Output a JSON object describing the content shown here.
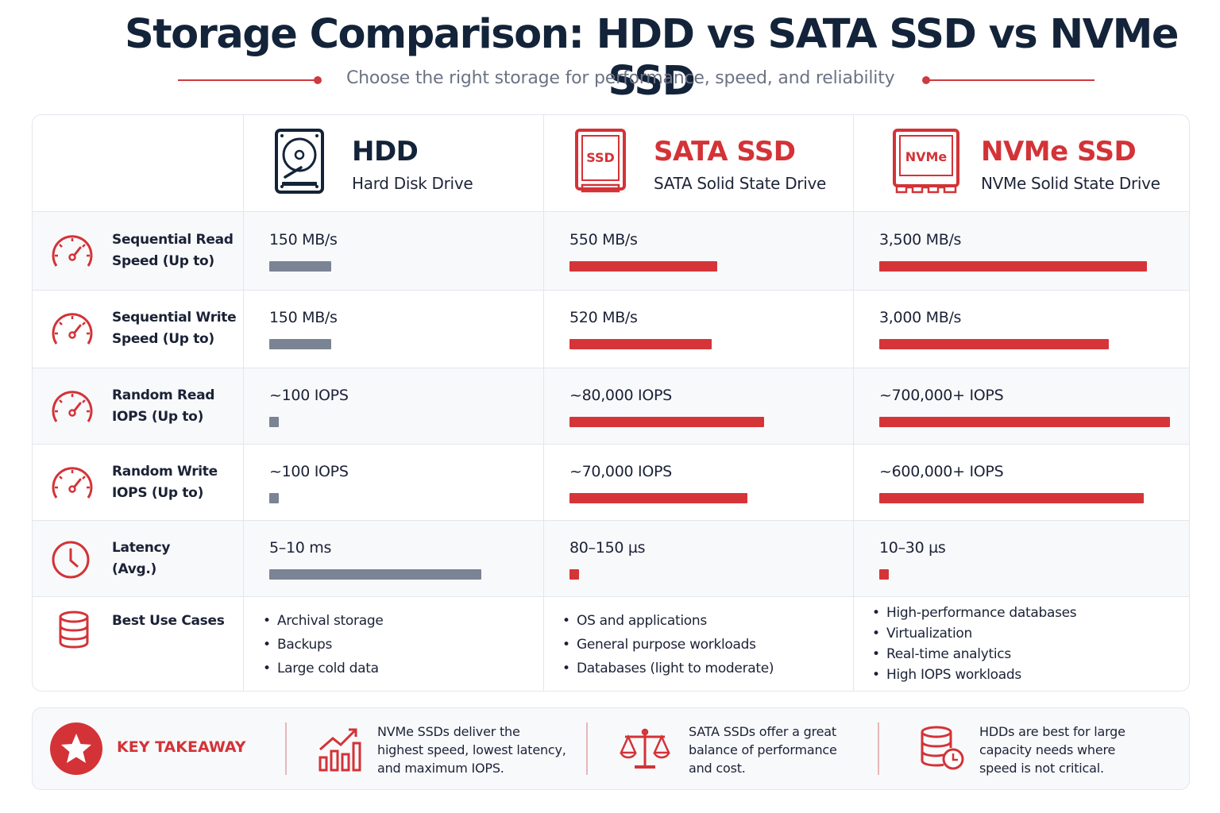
{
  "title": "Storage Comparison: HDD vs SATA SSD vs NVMe SSD",
  "subtitle": "Choose the right storage for performance, speed, and reliability",
  "colors": {
    "accent": "#d53539",
    "navy": "#132339",
    "hdd_bar": "#7b8494",
    "ssd_bar": "#d53539"
  },
  "drives": [
    {
      "name": "HDD",
      "subtitle": "Hard Disk Drive",
      "icon": "hard-disk-icon",
      "icon_text": ""
    },
    {
      "name": "SATA SSD",
      "subtitle": "SATA Solid State Drive",
      "icon": "ssd-icon",
      "icon_text": "SSD"
    },
    {
      "name": "NVMe SSD",
      "subtitle": "NVMe Solid State Drive",
      "icon": "nvme-icon",
      "icon_text": "NVMe"
    }
  ],
  "metrics": [
    {
      "label_line1": "Sequential Read",
      "label_line2": "Speed (Up to)",
      "icon": "speedometer-icon",
      "values": [
        "150 MB/s",
        "550 MB/s",
        "3,500 MB/s"
      ],
      "bar_levels": [
        0.24,
        0.54,
        0.92
      ]
    },
    {
      "label_line1": "Sequential Write",
      "label_line2": "Speed (Up to)",
      "icon": "speedometer-icon",
      "values": [
        "150 MB/s",
        "520 MB/s",
        "3,000 MB/s"
      ],
      "bar_levels": [
        0.24,
        0.52,
        0.79
      ]
    },
    {
      "label_line1": "Random Read",
      "label_line2": "IOPS (Up to)",
      "icon": "speedometer-icon",
      "values": [
        "~100 IOPS",
        "~80,000 IOPS",
        "~700,000+ IOPS"
      ],
      "bar_levels": [
        0.03,
        0.71,
        1.0
      ]
    },
    {
      "label_line1": "Random Write",
      "label_line2": "IOPS (Up to)",
      "icon": "speedometer-icon",
      "values": [
        "~100 IOPS",
        "~70,000 IOPS",
        "~600,000+ IOPS"
      ],
      "bar_levels": [
        0.03,
        0.65,
        0.91
      ]
    },
    {
      "label_line1": "Latency",
      "label_line2": "(Avg.)",
      "icon": "clock-icon",
      "values": [
        "5–10 ms",
        "80–150 µs",
        "10–30 µs"
      ],
      "bar_levels": [
        0.82,
        0.025,
        0.02
      ]
    }
  ],
  "use_cases": {
    "label": "Best Use Cases",
    "icon": "database-icon",
    "hdd": [
      "Archival storage",
      "Backups",
      "Large cold data"
    ],
    "sata": [
      "OS and applications",
      "General purpose workloads",
      "Databases (light to moderate)"
    ],
    "nvme": [
      "High-performance databases",
      "Virtualization",
      "Real-time analytics",
      "High IOPS workloads"
    ]
  },
  "takeaway": {
    "label": "KEY TAKEAWAY",
    "icon": "star-icon",
    "items": [
      {
        "icon": "growth-chart-icon",
        "line1": "NVMe SSDs deliver the",
        "line2": "highest speed, lowest latency,",
        "line3": "and maximum IOPS."
      },
      {
        "icon": "balance-scale-icon",
        "line1": "SATA SSDs offer a great",
        "line2": "balance of performance",
        "line3": "and cost."
      },
      {
        "icon": "database-clock-icon",
        "line1": "HDDs are best for large",
        "line2": "capacity needs where",
        "line3": "speed is not critical."
      }
    ]
  }
}
